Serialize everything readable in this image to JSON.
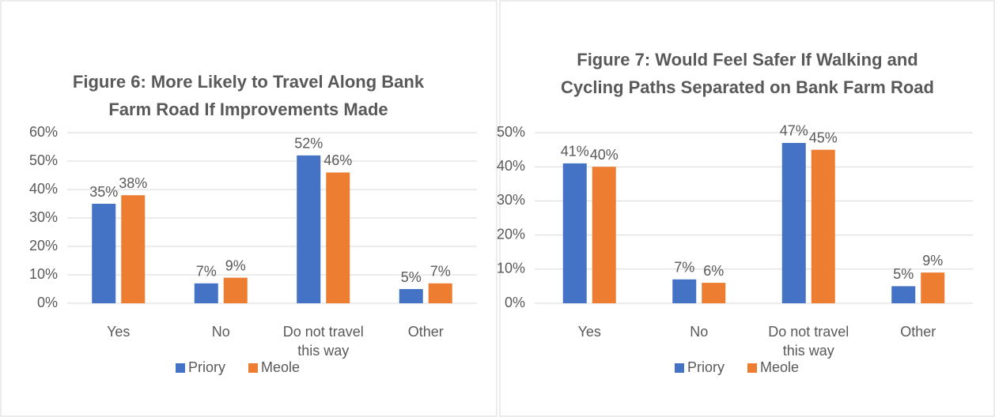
{
  "chart_data": [
    {
      "type": "bar",
      "title": "Figure 6: More Likely to Travel Along Bank Farm Road If Improvements Made",
      "categories": [
        "Yes",
        "No",
        "Do not travel this way",
        "Other"
      ],
      "series": [
        {
          "name": "Priory",
          "color": "#4472c4",
          "values": [
            35,
            7,
            52,
            5
          ],
          "value_labels": [
            "35%",
            "7%",
            "52%",
            "5%"
          ]
        },
        {
          "name": "Meole",
          "color": "#ed7d31",
          "values": [
            38,
            9,
            46,
            7
          ],
          "value_labels": [
            "38%",
            "9%",
            "46%",
            "7%"
          ]
        }
      ],
      "ylim": [
        0,
        60
      ],
      "yticks": [
        {
          "value": 0,
          "label": "0%"
        },
        {
          "value": 10,
          "label": "10%"
        },
        {
          "value": 20,
          "label": "20%"
        },
        {
          "value": 30,
          "label": "30%"
        },
        {
          "value": 40,
          "label": "40%"
        },
        {
          "value": 50,
          "label": "50%"
        },
        {
          "value": 60,
          "label": "60%"
        }
      ],
      "grid": true,
      "legend": "bottom"
    },
    {
      "type": "bar",
      "title": "Figure 7: Would Feel Safer If Walking and Cycling Paths Separated on Bank Farm Road",
      "categories": [
        "Yes",
        "No",
        "Do not travel this way",
        "Other"
      ],
      "series": [
        {
          "name": "Priory",
          "color": "#4472c4",
          "values": [
            41,
            7,
            47,
            5
          ],
          "value_labels": [
            "41%",
            "7%",
            "47%",
            "5%"
          ]
        },
        {
          "name": "Meole",
          "color": "#ed7d31",
          "values": [
            40,
            6,
            45,
            9
          ],
          "value_labels": [
            "40%",
            "6%",
            "45%",
            "9%"
          ]
        }
      ],
      "ylim": [
        0,
        50
      ],
      "yticks": [
        {
          "value": 0,
          "label": "0%"
        },
        {
          "value": 10,
          "label": "10%"
        },
        {
          "value": 20,
          "label": "20%"
        },
        {
          "value": 30,
          "label": "30%"
        },
        {
          "value": 40,
          "label": "40%"
        },
        {
          "value": 50,
          "label": "50%"
        }
      ],
      "grid": true,
      "legend": "bottom"
    }
  ]
}
